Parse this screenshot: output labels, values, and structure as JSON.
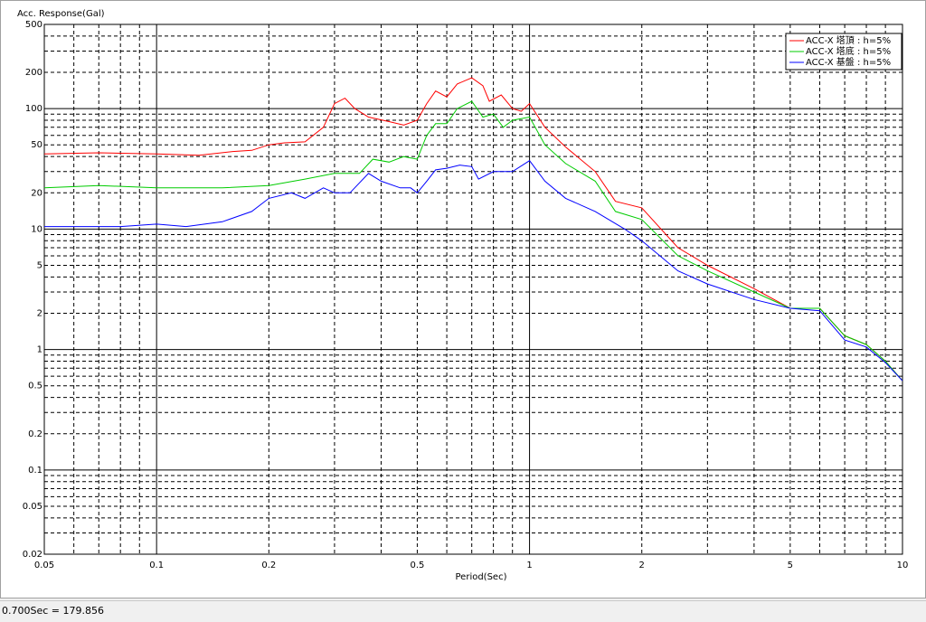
{
  "chart_data": {
    "type": "line",
    "title": "Acc. Response(Gal)",
    "x_label": "Period(Sec)",
    "log_x": true,
    "log_y": true,
    "grid": true,
    "legend": "upper right",
    "xlim": [
      0.05,
      10
    ],
    "ylim": [
      0.02,
      500
    ],
    "xticks": [
      0.05,
      0.1,
      0.2,
      0.5,
      1,
      2,
      5,
      10
    ],
    "yticks": [
      0.02,
      0.05,
      0.1,
      0.2,
      0.5,
      1,
      2,
      5,
      10,
      20,
      50,
      100,
      200,
      500
    ],
    "series": [
      {
        "name": "ACC-X 塔頂 : h=5%",
        "color": "#ff0000",
        "x": [
          0.05,
          0.07,
          0.1,
          0.13,
          0.16,
          0.18,
          0.2,
          0.22,
          0.25,
          0.28,
          0.3,
          0.32,
          0.34,
          0.37,
          0.42,
          0.46,
          0.5,
          0.53,
          0.56,
          0.6,
          0.64,
          0.7,
          0.75,
          0.78,
          0.84,
          0.9,
          0.95,
          1.0,
          1.1,
          1.25,
          1.5,
          1.7,
          2,
          2.5,
          3,
          4,
          5,
          6,
          7,
          8,
          9,
          10
        ],
        "values": [
          42,
          43,
          42,
          41,
          44,
          45,
          50,
          52,
          53,
          70,
          110,
          122,
          100,
          85,
          78,
          73,
          80,
          110,
          140,
          125,
          160,
          180,
          155,
          115,
          130,
          100,
          95,
          110,
          70,
          48,
          30,
          17,
          15,
          7,
          5,
          3.2,
          2.2,
          2.2,
          1.3,
          1.1,
          0.8,
          0.55
        ]
      },
      {
        "name": "ACC-X 塔底 : h=5%",
        "color": "#00cc00",
        "x": [
          0.05,
          0.07,
          0.1,
          0.15,
          0.2,
          0.25,
          0.3,
          0.35,
          0.38,
          0.42,
          0.46,
          0.5,
          0.53,
          0.56,
          0.6,
          0.64,
          0.7,
          0.75,
          0.8,
          0.85,
          0.9,
          1.0,
          1.1,
          1.25,
          1.5,
          1.7,
          2,
          2.5,
          3,
          4,
          5,
          6,
          7,
          8,
          9,
          10
        ],
        "values": [
          22,
          23,
          22,
          22,
          23,
          26,
          29,
          29,
          38,
          36,
          40,
          38,
          60,
          75,
          75,
          100,
          115,
          85,
          90,
          70,
          80,
          85,
          50,
          35,
          25,
          14,
          12,
          6,
          4.5,
          3,
          2.2,
          2.2,
          1.3,
          1.1,
          0.8,
          0.55
        ]
      },
      {
        "name": "ACC-X 基盤 : h=5%",
        "color": "#0000ff",
        "x": [
          0.05,
          0.08,
          0.1,
          0.12,
          0.15,
          0.18,
          0.2,
          0.23,
          0.25,
          0.28,
          0.3,
          0.33,
          0.37,
          0.4,
          0.45,
          0.48,
          0.5,
          0.53,
          0.56,
          0.6,
          0.65,
          0.7,
          0.73,
          0.8,
          0.85,
          0.9,
          1.0,
          1.1,
          1.25,
          1.5,
          1.8,
          2,
          2.5,
          3,
          4,
          5,
          6,
          7,
          8,
          9,
          10
        ],
        "values": [
          10.5,
          10.5,
          11,
          10.5,
          11.5,
          14,
          18,
          20,
          18,
          22,
          20,
          20,
          29,
          25,
          22,
          22,
          20,
          25,
          31,
          32,
          34,
          33,
          26,
          30,
          30,
          30,
          37,
          25,
          18,
          14,
          10,
          8,
          4.5,
          3.5,
          2.6,
          2.2,
          2.1,
          1.2,
          1.05,
          0.78,
          0.55
        ]
      }
    ]
  },
  "status_bar": "0.700Sec = 179.856"
}
